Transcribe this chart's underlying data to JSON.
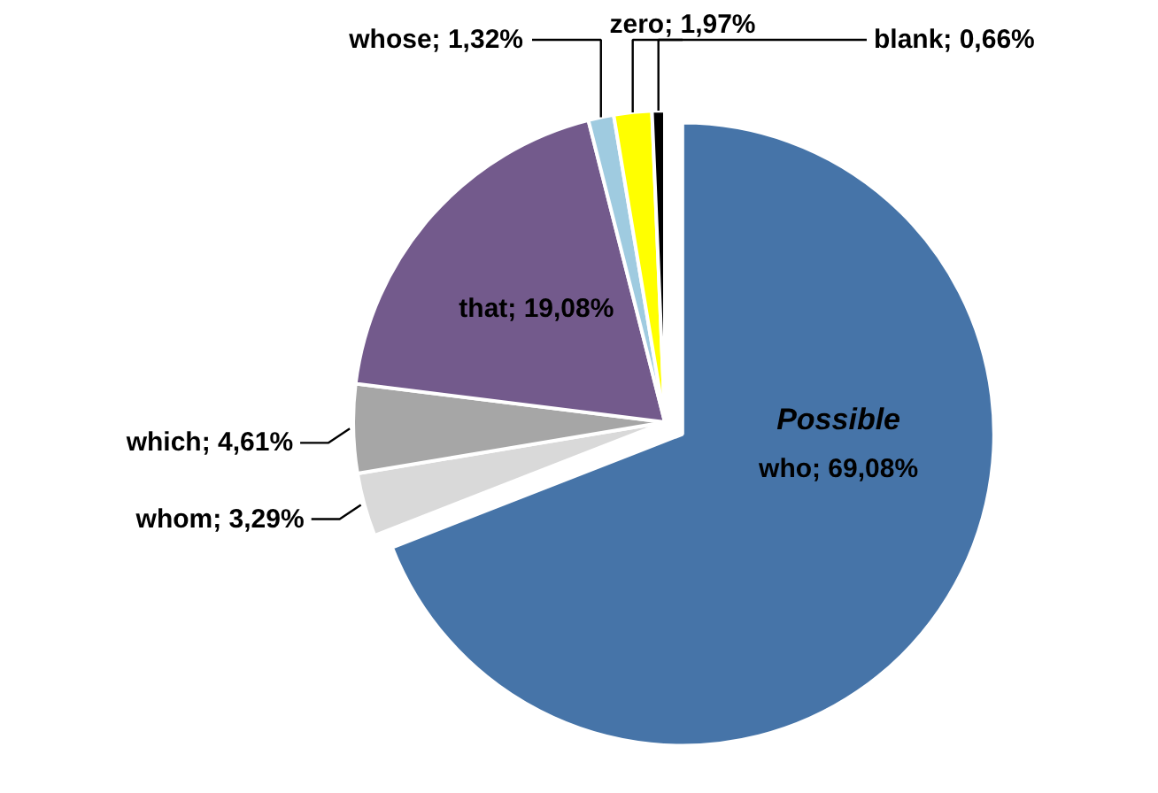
{
  "chart_data": {
    "type": "pie",
    "categories": [
      "who",
      "whom",
      "which",
      "that",
      "whose",
      "zero",
      "blank"
    ],
    "values": [
      69.08,
      3.29,
      4.61,
      19.08,
      1.32,
      1.97,
      0.66
    ],
    "value_labels": [
      "69,08%",
      "3,29%",
      "4,61%",
      "19,08%",
      "1,32%",
      "1,97%",
      "0,66%"
    ],
    "colors": [
      "#4674a8",
      "#d9d9d9",
      "#a6a6a6",
      "#735a8c",
      "#9fcbe0",
      "#ffff00",
      "#000000"
    ],
    "annotations": [
      "Possible"
    ]
  }
}
